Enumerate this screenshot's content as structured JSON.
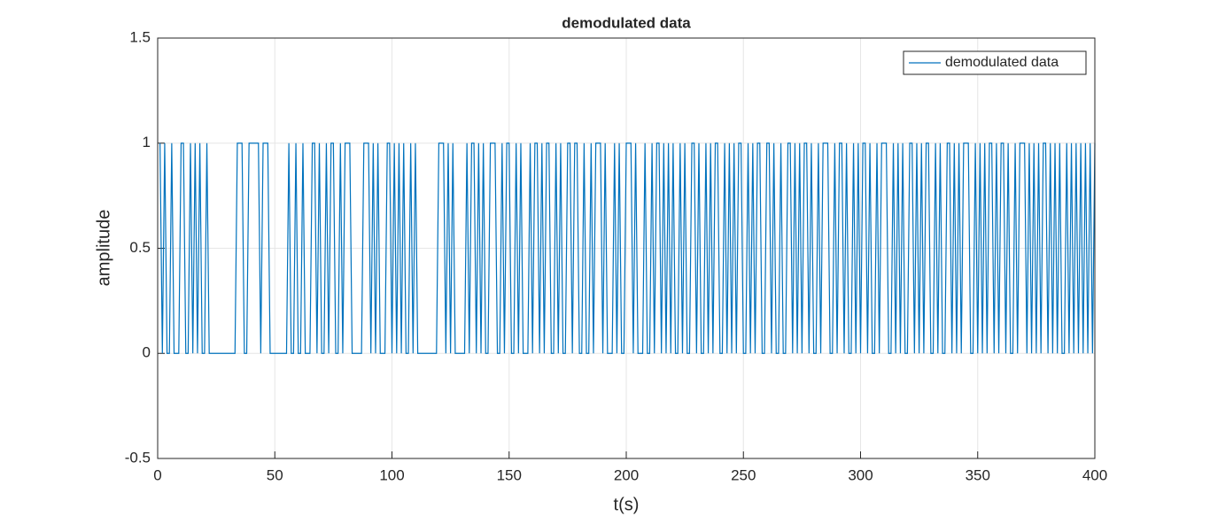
{
  "chart_data": {
    "type": "line",
    "title": "demodulated data",
    "xlabel": "t(s)",
    "ylabel": "amplitude",
    "xlim": [
      0,
      400
    ],
    "ylim": [
      -0.5,
      1.5
    ],
    "xticks": [
      0,
      50,
      100,
      150,
      200,
      250,
      300,
      350,
      400
    ],
    "yticks": [
      -0.5,
      0,
      0.5,
      1,
      1.5
    ],
    "grid": true,
    "legend": "upper-right",
    "x": [
      1,
      2,
      3,
      4,
      5,
      6,
      7,
      8,
      9,
      10,
      11,
      12,
      13,
      14,
      15,
      16,
      17,
      18,
      19,
      20,
      21,
      22,
      23,
      24,
      25,
      26,
      27,
      28,
      29,
      30,
      31,
      32,
      33,
      34,
      35,
      36,
      37,
      38,
      39,
      40,
      41,
      42,
      43,
      44,
      45,
      46,
      47,
      48,
      49,
      50,
      51,
      52,
      53,
      54,
      55,
      56,
      57,
      58,
      59,
      60,
      61,
      62,
      63,
      64,
      65,
      66,
      67,
      68,
      69,
      70,
      71,
      72,
      73,
      74,
      75,
      76,
      77,
      78,
      79,
      80,
      81,
      82,
      83,
      84,
      85,
      86,
      87,
      88,
      89,
      90,
      91,
      92,
      93,
      94,
      95,
      96,
      97,
      98,
      99,
      100,
      101,
      102,
      103,
      104,
      105,
      106,
      107,
      108,
      109,
      110,
      111,
      112,
      113,
      114,
      115,
      116,
      117,
      118,
      119,
      120,
      121,
      122,
      123,
      124,
      125,
      126,
      127,
      128,
      129,
      130,
      131,
      132,
      133,
      134,
      135,
      136,
      137,
      138,
      139,
      140,
      141,
      142,
      143,
      144,
      145,
      146,
      147,
      148,
      149,
      150,
      151,
      152,
      153,
      154,
      155,
      156,
      157,
      158,
      159,
      160,
      161,
      162,
      163,
      164,
      165,
      166,
      167,
      168,
      169,
      170,
      171,
      172,
      173,
      174,
      175,
      176,
      177,
      178,
      179,
      180,
      181,
      182,
      183,
      184,
      185,
      186,
      187,
      188,
      189,
      190,
      191,
      192,
      193,
      194,
      195,
      196,
      197,
      198,
      199,
      200,
      201,
      202,
      203,
      204,
      205,
      206,
      207,
      208,
      209,
      210,
      211,
      212,
      213,
      214,
      215,
      216,
      217,
      218,
      219,
      220,
      221,
      222,
      223,
      224,
      225,
      226,
      227,
      228,
      229,
      230,
      231,
      232,
      233,
      234,
      235,
      236,
      237,
      238,
      239,
      240,
      241,
      242,
      243,
      244,
      245,
      246,
      247,
      248,
      249,
      250,
      251,
      252,
      253,
      254,
      255,
      256,
      257,
      258,
      259,
      260,
      261,
      262,
      263,
      264,
      265,
      266,
      267,
      268,
      269,
      270,
      271,
      272,
      273,
      274,
      275,
      276,
      277,
      278,
      279,
      280,
      281,
      282,
      283,
      284,
      285,
      286,
      287,
      288,
      289,
      290,
      291,
      292,
      293,
      294,
      295,
      296,
      297,
      298,
      299,
      300,
      301,
      302,
      303,
      304,
      305,
      306,
      307,
      308,
      309,
      310,
      311,
      312,
      313,
      314,
      315,
      316,
      317,
      318,
      319,
      320,
      321,
      322,
      323,
      324,
      325,
      326,
      327,
      328,
      329,
      330,
      331,
      332,
      333,
      334,
      335,
      336,
      337,
      338,
      339,
      340,
      341,
      342,
      343,
      344,
      345,
      346,
      347,
      348,
      349,
      350,
      351,
      352,
      353,
      354,
      355,
      356,
      357,
      358,
      359,
      360,
      361,
      362,
      363,
      364,
      365,
      366,
      367,
      368,
      369,
      370,
      371,
      372,
      373,
      374,
      375,
      376,
      377,
      378,
      379,
      380,
      381,
      382,
      383,
      384,
      385,
      386,
      387,
      388,
      389,
      390,
      391,
      392,
      393,
      394,
      395,
      396,
      397,
      398,
      399,
      400
    ],
    "series": [
      {
        "name": "demodulated data",
        "color": "#0072bd",
        "values": [
          1,
          0,
          1,
          0,
          0,
          1,
          0,
          0,
          0,
          1,
          1,
          0,
          0,
          1,
          0,
          1,
          0,
          1,
          0,
          0,
          1,
          0,
          0,
          0,
          0,
          0,
          0,
          0,
          0,
          0,
          0,
          0,
          0,
          1,
          1,
          1,
          0,
          0,
          1,
          1,
          1,
          1,
          1,
          0,
          1,
          1,
          1,
          0,
          0,
          0,
          0,
          0,
          0,
          0,
          0,
          1,
          0,
          0,
          1,
          0,
          0,
          1,
          0,
          0,
          0,
          1,
          1,
          0,
          1,
          0,
          0,
          1,
          0,
          1,
          1,
          0,
          0,
          1,
          0,
          1,
          1,
          1,
          0,
          0,
          0,
          0,
          0,
          1,
          1,
          1,
          0,
          1,
          0,
          1,
          0,
          0,
          0,
          1,
          1,
          0,
          1,
          0,
          1,
          0,
          1,
          0,
          0,
          1,
          0,
          1,
          0,
          0,
          0,
          0,
          0,
          0,
          0,
          0,
          0,
          1,
          1,
          1,
          0,
          1,
          0,
          1,
          0,
          0,
          0,
          0,
          0,
          1,
          0,
          1,
          1,
          0,
          1,
          0,
          1,
          0,
          0,
          1,
          1,
          1,
          0,
          0,
          1,
          0,
          1,
          1,
          0,
          0,
          1,
          0,
          1,
          0,
          0,
          0,
          1,
          0,
          1,
          1,
          0,
          1,
          0,
          1,
          1,
          0,
          0,
          1,
          0,
          1,
          0,
          0,
          1,
          1,
          0,
          1,
          1,
          0,
          0,
          1,
          0,
          0,
          1,
          0,
          1,
          1,
          1,
          0,
          1,
          0,
          0,
          0,
          1,
          0,
          1,
          0,
          0,
          1,
          1,
          1,
          0,
          1,
          0,
          0,
          0,
          1,
          0,
          0,
          1,
          0,
          1,
          1,
          0,
          1,
          0,
          1,
          0,
          1,
          0,
          0,
          1,
          0,
          1,
          0,
          0,
          1,
          1,
          0,
          1,
          0,
          0,
          1,
          0,
          1,
          0,
          1,
          1,
          0,
          0,
          1,
          0,
          1,
          0,
          1,
          0,
          1,
          1,
          0,
          0,
          1,
          0,
          1,
          0,
          1,
          1,
          0,
          0,
          1,
          1,
          0,
          1,
          0,
          0,
          1,
          0,
          0,
          1,
          1,
          0,
          1,
          0,
          1,
          0,
          1,
          1,
          0,
          1,
          0,
          0,
          1,
          0,
          1,
          1,
          1,
          0,
          0,
          1,
          0,
          1,
          1,
          0,
          1,
          0,
          0,
          1,
          0,
          1,
          0,
          1,
          1,
          0,
          1,
          0,
          0,
          1,
          0,
          1,
          1,
          1,
          0,
          0,
          1,
          0,
          1,
          0,
          1,
          0,
          0,
          1,
          1,
          0,
          1,
          0,
          1,
          0,
          1,
          1,
          0,
          0,
          1,
          0,
          1,
          0,
          0,
          1,
          1,
          0,
          1,
          0,
          1,
          0,
          1,
          1,
          1,
          0,
          0,
          1,
          0,
          1,
          0,
          1,
          0,
          1,
          1,
          0,
          1,
          0,
          1,
          1,
          0,
          1,
          0,
          0,
          1,
          0,
          1,
          1,
          1,
          0,
          1,
          0,
          1,
          0,
          1,
          0,
          1,
          1,
          0,
          1,
          0,
          1,
          0,
          1,
          0,
          0,
          1,
          0,
          1,
          0,
          1,
          0,
          1,
          0,
          1,
          0,
          1,
          0,
          1
        ]
      }
    ]
  }
}
